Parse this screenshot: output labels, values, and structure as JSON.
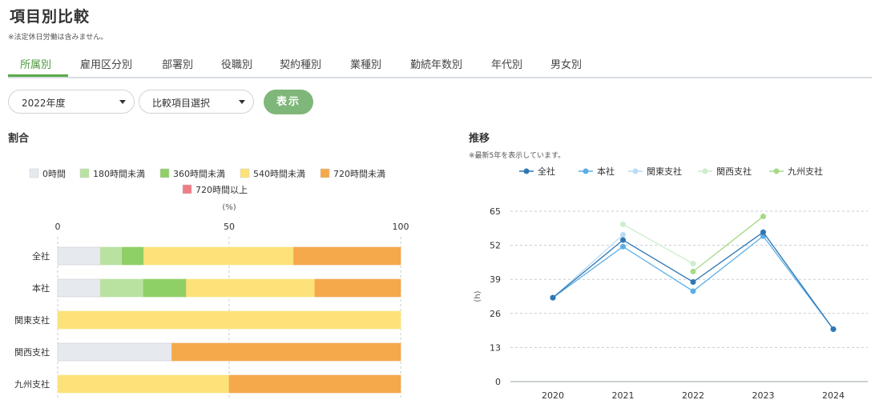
{
  "page": {
    "title": "項目別比較",
    "note": "※法定休日労働は含みません。"
  },
  "tabs": [
    {
      "label": "所属別",
      "active": true
    },
    {
      "label": "雇用区分別",
      "active": false
    },
    {
      "label": "部署別",
      "active": false
    },
    {
      "label": "役職別",
      "active": false
    },
    {
      "label": "契約種別",
      "active": false
    },
    {
      "label": "業種別",
      "active": false
    },
    {
      "label": "勤続年数別",
      "active": false
    },
    {
      "label": "年代別",
      "active": false
    },
    {
      "label": "男女別",
      "active": false
    }
  ],
  "controls": {
    "year_select": "2022年度",
    "compare_select": "比較項目選択",
    "show_button": "表示"
  },
  "left_section": {
    "title": "割合"
  },
  "right_section": {
    "title": "推移",
    "note": "※最新5年を表示しています。"
  },
  "colors": {
    "accent": "#5aa94a",
    "button": "#7fb77a"
  },
  "chart_data": [
    {
      "type": "bar",
      "orientation": "horizontal",
      "stacked": true,
      "unit_label": "(%)",
      "xlim": [
        0,
        100
      ],
      "x_ticks": [
        0,
        50,
        100
      ],
      "grid": true,
      "legend_position": "top",
      "categories": [
        "全社",
        "本社",
        "関東支社",
        "関西支社",
        "九州支社"
      ],
      "series": [
        {
          "name": "0時間",
          "color": "#e6e9ee",
          "values": [
            12.5,
            12.5,
            0,
            33.3,
            0
          ]
        },
        {
          "name": "180時間未満",
          "color": "#b9e2a0",
          "values": [
            6.3,
            12.5,
            0,
            0,
            0
          ]
        },
        {
          "name": "360時間未満",
          "color": "#8fcf66",
          "values": [
            6.3,
            12.5,
            0,
            0,
            0
          ]
        },
        {
          "name": "540時間未満",
          "color": "#fde27a",
          "values": [
            43.7,
            37.5,
            100,
            0,
            50
          ]
        },
        {
          "name": "720時間未満",
          "color": "#f5a94a",
          "values": [
            31.2,
            25,
            0,
            66.7,
            50
          ]
        },
        {
          "name": "720時間以上",
          "color": "#f07c85",
          "values": [
            0,
            0,
            0,
            0,
            0
          ]
        }
      ]
    },
    {
      "type": "line",
      "ylabel": "(h)",
      "ylim": [
        0,
        65
      ],
      "y_ticks": [
        0,
        13,
        26,
        39,
        52,
        65
      ],
      "grid": true,
      "legend_position": "top",
      "x": [
        "2020",
        "2021",
        "2022",
        "2023",
        "2024"
      ],
      "series": [
        {
          "name": "全社",
          "color": "#2f77b5",
          "values": [
            32,
            54,
            38,
            57,
            20
          ]
        },
        {
          "name": "本社",
          "color": "#5aaee6",
          "values": [
            32,
            51.5,
            34.5,
            55.5,
            20
          ]
        },
        {
          "name": "関東支社",
          "color": "#b9dcf5",
          "values": [
            32,
            56,
            null,
            null,
            20
          ]
        },
        {
          "name": "関西支社",
          "color": "#cdeccd",
          "values": [
            null,
            60,
            45,
            null,
            null
          ]
        },
        {
          "name": "九州支社",
          "color": "#a6da86",
          "values": [
            null,
            null,
            42,
            63,
            null
          ]
        }
      ]
    }
  ]
}
